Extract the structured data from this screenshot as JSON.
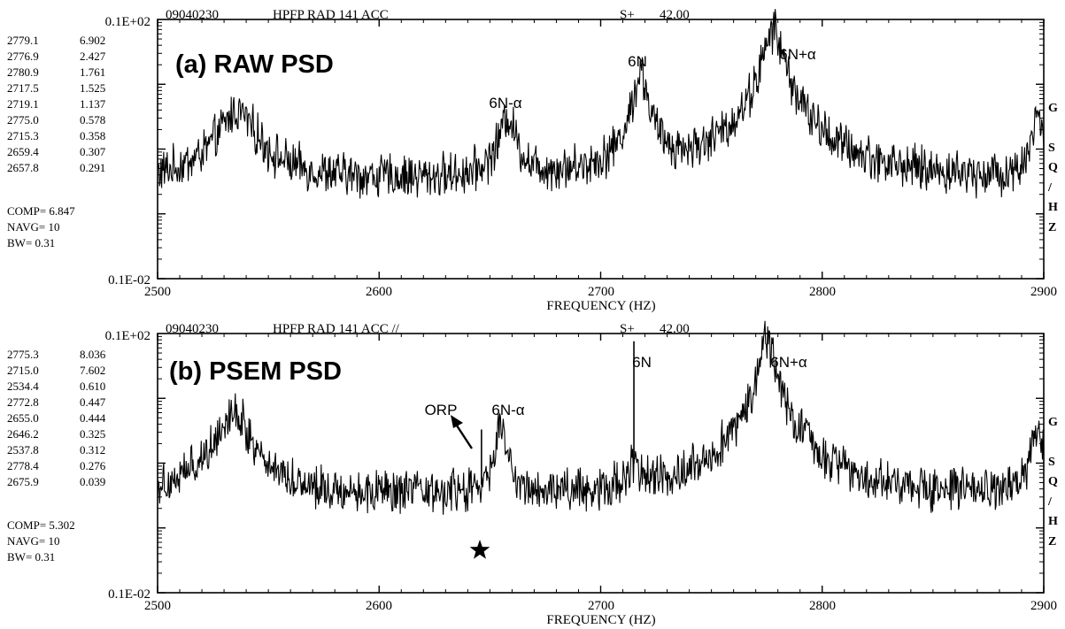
{
  "panels": [
    {
      "header": {
        "code": "09040230",
        "channel": "HPFP RAD 141 ACC",
        "speed_label": "S+",
        "speed_value": "42.00"
      },
      "title": "(a) RAW PSD",
      "y_top_label": "0.1E+02",
      "y_bottom_label": "0.1E-02",
      "peak_table": [
        [
          "2779.1",
          "6.902"
        ],
        [
          "2776.9",
          "2.427"
        ],
        [
          "2780.9",
          "1.761"
        ],
        [
          "2717.5",
          "1.525"
        ],
        [
          "2719.1",
          "1.137"
        ],
        [
          "2775.0",
          "0.578"
        ],
        [
          "2715.3",
          "0.358"
        ],
        [
          "2659.4",
          "0.307"
        ],
        [
          "2657.8",
          "0.291"
        ]
      ],
      "stats": {
        "comp": "COMP=  6.847",
        "navg": "NAVG=  10",
        "bw": "BW=  0.31"
      },
      "unit_label": [
        "G",
        "S",
        "Q",
        "/",
        "H",
        "Z"
      ],
      "xlabel": "FREQUENCY (HZ)",
      "x_ticks": [
        "2500",
        "2600",
        "2700",
        "2800",
        "2900"
      ],
      "annotations": [
        "6N-α",
        "6N",
        "6N+α"
      ]
    },
    {
      "header": {
        "code": "09040230",
        "channel": "HPFP RAD 141 ACC //",
        "speed_label": "S+",
        "speed_value": "42.00"
      },
      "title": "(b) PSEM PSD",
      "y_top_label": "0.1E+02",
      "y_bottom_label": "0.1E-02",
      "peak_table": [
        [
          "2775.3",
          "8.036"
        ],
        [
          "2715.0",
          "7.602"
        ],
        [
          "2534.4",
          "0.610"
        ],
        [
          "2772.8",
          "0.447"
        ],
        [
          "2655.0",
          "0.444"
        ],
        [
          "2646.2",
          "0.325"
        ],
        [
          "2537.8",
          "0.312"
        ],
        [
          "2778.4",
          "0.276"
        ],
        [
          "2675.9",
          "0.039"
        ]
      ],
      "stats": {
        "comp": "COMP=  5.302",
        "navg": "NAVG=  10",
        "bw": "BW=  0.31"
      },
      "unit_label": [
        "G",
        "S",
        "Q",
        "/",
        "H",
        "Z"
      ],
      "xlabel": "FREQUENCY (HZ)",
      "x_ticks": [
        "2500",
        "2600",
        "2700",
        "2800",
        "2900"
      ],
      "annotations": [
        "ORP",
        "6N-α",
        "6N",
        "6N+α"
      ]
    }
  ],
  "chart_data": [
    {
      "type": "line",
      "title": "(a) RAW PSD",
      "xlabel": "FREQUENCY (HZ)",
      "ylabel": "G SQ/HZ",
      "xlim": [
        2500,
        2900
      ],
      "ylim": [
        0.001,
        10
      ],
      "yscale": "log",
      "noise_floor": 0.03,
      "peaks": [
        {
          "freq": 2536,
          "value": 0.35,
          "width": 7
        },
        {
          "freq": 2658,
          "value": 0.29,
          "width": 3
        },
        {
          "freq": 2718,
          "value": 1.5,
          "width": 2.5
        },
        {
          "freq": 2778,
          "value": 6.9,
          "width": 3.5
        },
        {
          "freq": 2897,
          "value": 0.3,
          "width": 2
        }
      ],
      "spikes": []
    },
    {
      "type": "line",
      "title": "(b) PSEM PSD",
      "xlabel": "FREQUENCY (HZ)",
      "ylabel": "G SQ/HZ",
      "xlim": [
        2500,
        2900
      ],
      "ylim": [
        0.001,
        10
      ],
      "yscale": "log",
      "noise_floor": 0.028,
      "peaks": [
        {
          "freq": 2534,
          "value": 0.6,
          "width": 6
        },
        {
          "freq": 2655,
          "value": 0.44,
          "width": 1.5
        },
        {
          "freq": 2715,
          "value": 0.05,
          "width": 2.5
        },
        {
          "freq": 2775,
          "value": 8.0,
          "width": 3
        },
        {
          "freq": 2897,
          "value": 0.3,
          "width": 2
        }
      ],
      "spikes": [
        {
          "freq": 2646.2,
          "value": 0.33
        },
        {
          "freq": 2715.0,
          "value": 7.6
        }
      ]
    }
  ]
}
